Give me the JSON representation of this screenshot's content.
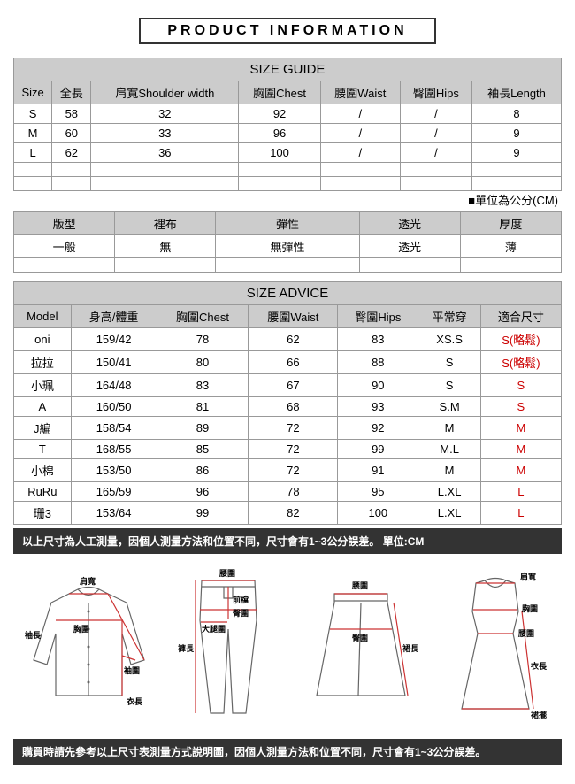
{
  "title": "PRODUCT INFORMATION",
  "sizeGuide": {
    "heading": "SIZE GUIDE",
    "headers": [
      "Size",
      "全長",
      "肩寬Shoulder width",
      "胸圍Chest",
      "腰圍Waist",
      "臀圍Hips",
      "袖長Length"
    ],
    "rows": [
      [
        "S",
        "58",
        "32",
        "92",
        "/",
        "/",
        "8"
      ],
      [
        "M",
        "60",
        "33",
        "96",
        "/",
        "/",
        "9"
      ],
      [
        "L",
        "62",
        "36",
        "100",
        "/",
        "/",
        "9"
      ]
    ],
    "unitNote": "■單位為公分(CM)"
  },
  "attrs": {
    "headers": [
      "版型",
      "裡布",
      "彈性",
      "透光",
      "厚度"
    ],
    "values": [
      "一般",
      "無",
      "無彈性",
      "透光",
      "薄"
    ]
  },
  "sizeAdvice": {
    "heading": "SIZE ADVICE",
    "headers": [
      "Model",
      "身高/體重",
      "胸圍Chest",
      "腰圍Waist",
      "臀圍Hips",
      "平常穿",
      "適合尺寸"
    ],
    "rows": [
      [
        "oni",
        "159/42",
        "78",
        "62",
        "83",
        "XS.S",
        "S(略鬆)"
      ],
      [
        "拉拉",
        "150/41",
        "80",
        "66",
        "88",
        "S",
        "S(略鬆)"
      ],
      [
        "小珮",
        "164/48",
        "83",
        "67",
        "90",
        "S",
        "S"
      ],
      [
        "A",
        "160/50",
        "81",
        "68",
        "93",
        "S.M",
        "S"
      ],
      [
        "J編",
        "158/54",
        "89",
        "72",
        "92",
        "M",
        "M"
      ],
      [
        "T",
        "168/55",
        "85",
        "72",
        "99",
        "M.L",
        "M"
      ],
      [
        "小棉",
        "153/50",
        "86",
        "72",
        "91",
        "M",
        "M"
      ],
      [
        "RuRu",
        "165/59",
        "96",
        "78",
        "95",
        "L.XL",
        "L"
      ],
      [
        "珊3",
        "153/64",
        "99",
        "82",
        "100",
        "L.XL",
        "L"
      ]
    ]
  },
  "note1": "以上尺寸為人工測量，因個人測量方法和位置不同，尺寸會有1~3公分誤差。 單位:CM",
  "note2": "購買時請先參考以上尺寸表測量方式說明圖，因個人測量方法和位置不同，尺寸會有1~3公分誤差。",
  "diag": {
    "shirt": {
      "shoulder": "肩寬",
      "chest": "胸圍",
      "sleeveLen": "袖長",
      "sleeveW": "袖圍",
      "length": "衣長"
    },
    "pants": {
      "waist": "腰圍",
      "front": "前檔",
      "hip": "臀圍",
      "thigh": "大腿圍",
      "length": "褲長"
    },
    "skirt": {
      "waist": "腰圍",
      "hip": "臀圍",
      "length": "裙長"
    },
    "dress": {
      "shoulder": "肩寬",
      "chest": "胸圍",
      "waist": "腰圍",
      "length": "衣長",
      "hem": "裙擺"
    }
  }
}
